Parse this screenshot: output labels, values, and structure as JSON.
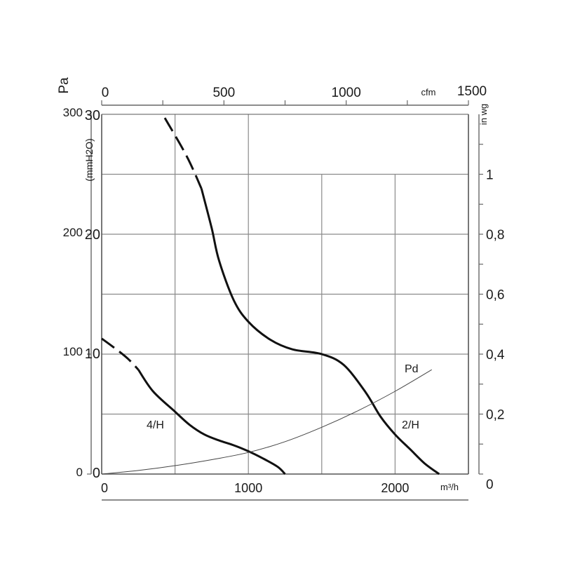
{
  "chart_data": {
    "type": "line",
    "title": "",
    "xlabel": "m³/h",
    "x_range": [
      0,
      2500
    ],
    "x_ticks": [
      "0",
      "1000",
      "2000"
    ],
    "top_axis": {
      "unit": "cfm",
      "range": [
        0,
        1500
      ],
      "ticks": [
        "0",
        "500",
        "1000",
        "1500"
      ]
    },
    "left_axis_pa": {
      "unit": "Pa",
      "range": [
        0,
        300
      ],
      "ticks": [
        "0",
        "100",
        "200",
        "300"
      ]
    },
    "left_axis_mmh2o": {
      "unit": "(mmH2O)",
      "range": [
        0,
        30
      ],
      "ticks": [
        "0",
        "10",
        "20",
        "30"
      ]
    },
    "right_axis": {
      "unit": "in wg",
      "range": [
        0,
        1.2
      ],
      "ticks": [
        "0",
        "0,2",
        "0,4",
        "0,6",
        "0,8",
        "1"
      ]
    },
    "grid": true,
    "series": [
      {
        "name": "2/H",
        "x": [
          430,
          580,
          680,
          750,
          800,
          900,
          1000,
          1150,
          1300,
          1500,
          1650,
          1800,
          1900,
          2000,
          2100,
          2200,
          2300
        ],
        "y": [
          297,
          265,
          238,
          205,
          178,
          145,
          127,
          112,
          104,
          100,
          91,
          68,
          48,
          33,
          21,
          9,
          0
        ],
        "dashed_until": 600
      },
      {
        "name": "4/H",
        "x": [
          0,
          100,
          180,
          250,
          350,
          500,
          600,
          700,
          800,
          900,
          1000,
          1100,
          1200,
          1250
        ],
        "y": [
          113,
          104,
          96,
          87,
          69,
          52,
          41,
          33,
          28,
          24,
          19,
          13,
          6,
          0
        ],
        "dashed_until": 230
      },
      {
        "name": "Pd",
        "thin": true,
        "x": [
          0,
          250,
          500,
          750,
          1000,
          1250,
          1500,
          1750,
          2000,
          2250
        ],
        "y": [
          0,
          3,
          7,
          12,
          18,
          27,
          39,
          53,
          69,
          87
        ]
      }
    ]
  }
}
